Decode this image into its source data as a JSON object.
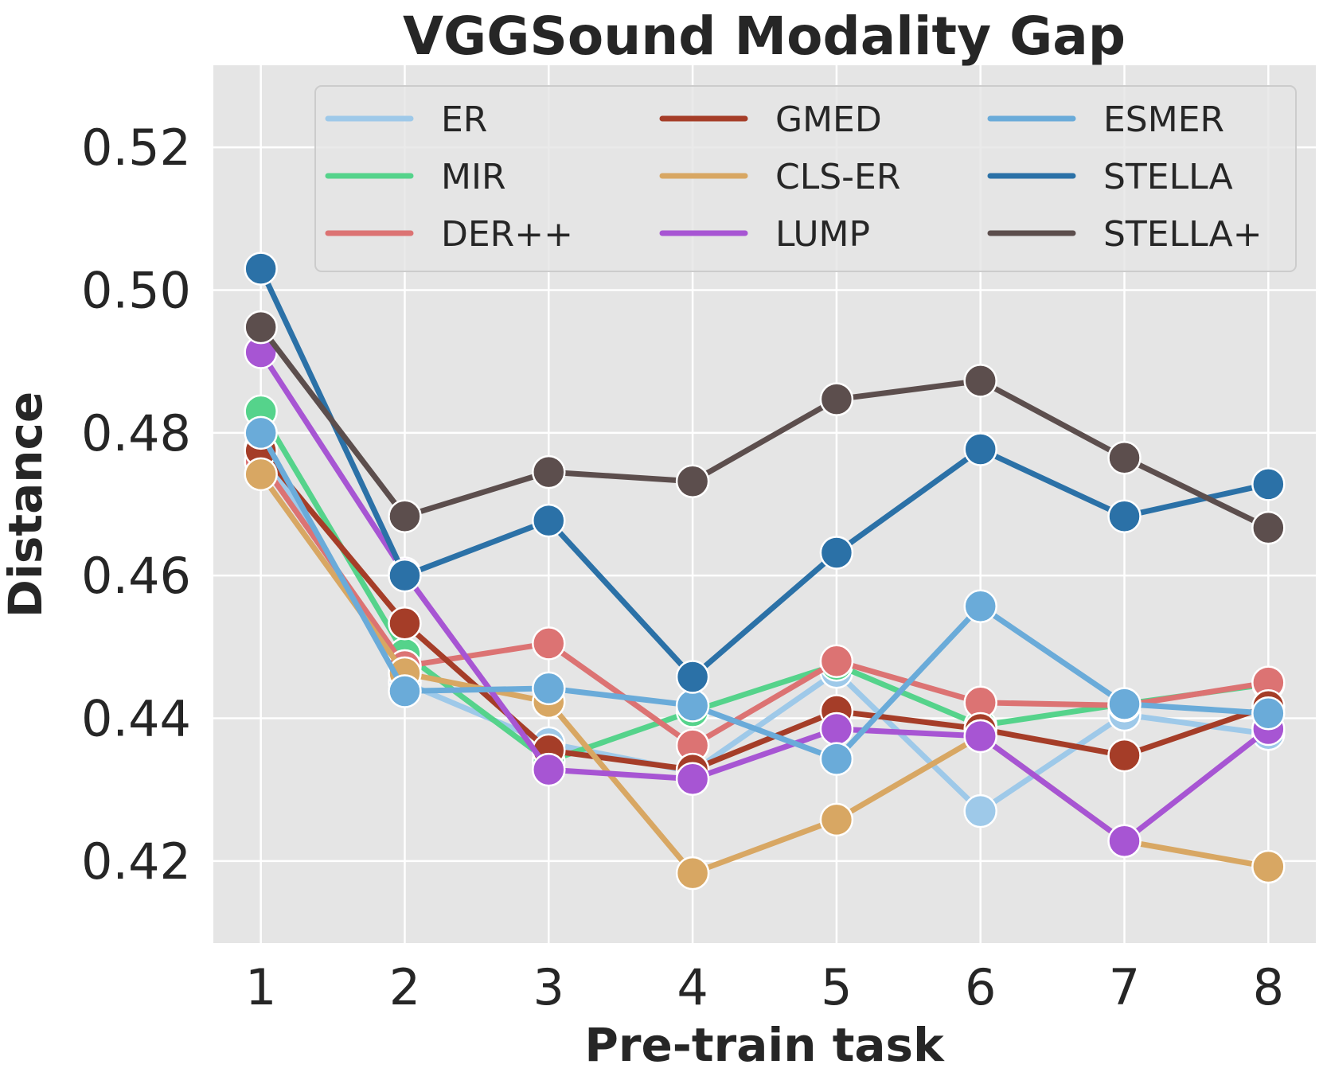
{
  "chart_data": {
    "type": "line",
    "title": "VGGSound Modality Gap",
    "xlabel": "Pre-train task",
    "ylabel": "Distance",
    "x": [
      1,
      2,
      3,
      4,
      5,
      6,
      7,
      8
    ],
    "xlim": [
      0.67,
      8.33
    ],
    "ylim": [
      0.4085,
      0.5315
    ],
    "yticks": [
      "0.42",
      "0.44",
      "0.46",
      "0.48",
      "0.50",
      "0.52"
    ],
    "grid": true,
    "legend_position": "top-right",
    "legend_columns": 3,
    "series": [
      {
        "name": "ER",
        "color": "#9ec9e9",
        "values": [
          0.478,
          0.445,
          0.4365,
          0.4325,
          0.4465,
          0.427,
          0.4405,
          0.4378
        ]
      },
      {
        "name": "MIR",
        "color": "#55d38b",
        "values": [
          0.483,
          0.449,
          0.434,
          0.441,
          0.4475,
          0.439,
          0.442,
          0.4448
        ]
      },
      {
        "name": "DER++",
        "color": "#dc7373",
        "values": [
          0.476,
          0.4473,
          0.4505,
          0.4362,
          0.448,
          0.4422,
          0.4418,
          0.445
        ]
      },
      {
        "name": "GMED",
        "color": "#a53d28",
        "values": [
          0.4775,
          0.4533,
          0.4355,
          0.4328,
          0.441,
          0.4385,
          0.4348,
          0.4417
        ]
      },
      {
        "name": "CLS-ER",
        "color": "#d8a763",
        "values": [
          0.4742,
          0.4463,
          0.4423,
          0.4183,
          0.4258,
          0.4375,
          0.4228,
          0.4192
        ]
      },
      {
        "name": "LUMP",
        "color": "#a755d3",
        "values": [
          0.4913,
          0.4603,
          0.4328,
          0.4315,
          0.4385,
          0.4375,
          0.4228,
          0.4385
        ]
      },
      {
        "name": "ESMER",
        "color": "#6aabd9",
        "values": [
          0.48,
          0.4438,
          0.4442,
          0.4418,
          0.4343,
          0.4557,
          0.442,
          0.4407
        ]
      },
      {
        "name": "STELLA",
        "color": "#2b71a7",
        "values": [
          0.503,
          0.46,
          0.4677,
          0.4458,
          0.4632,
          0.4777,
          0.4683,
          0.4728
        ]
      },
      {
        "name": "STELLA+",
        "color": "#5c4e4d",
        "values": [
          0.4948,
          0.4683,
          0.4745,
          0.4732,
          0.4847,
          0.4873,
          0.4765,
          0.4667
        ]
      }
    ]
  }
}
